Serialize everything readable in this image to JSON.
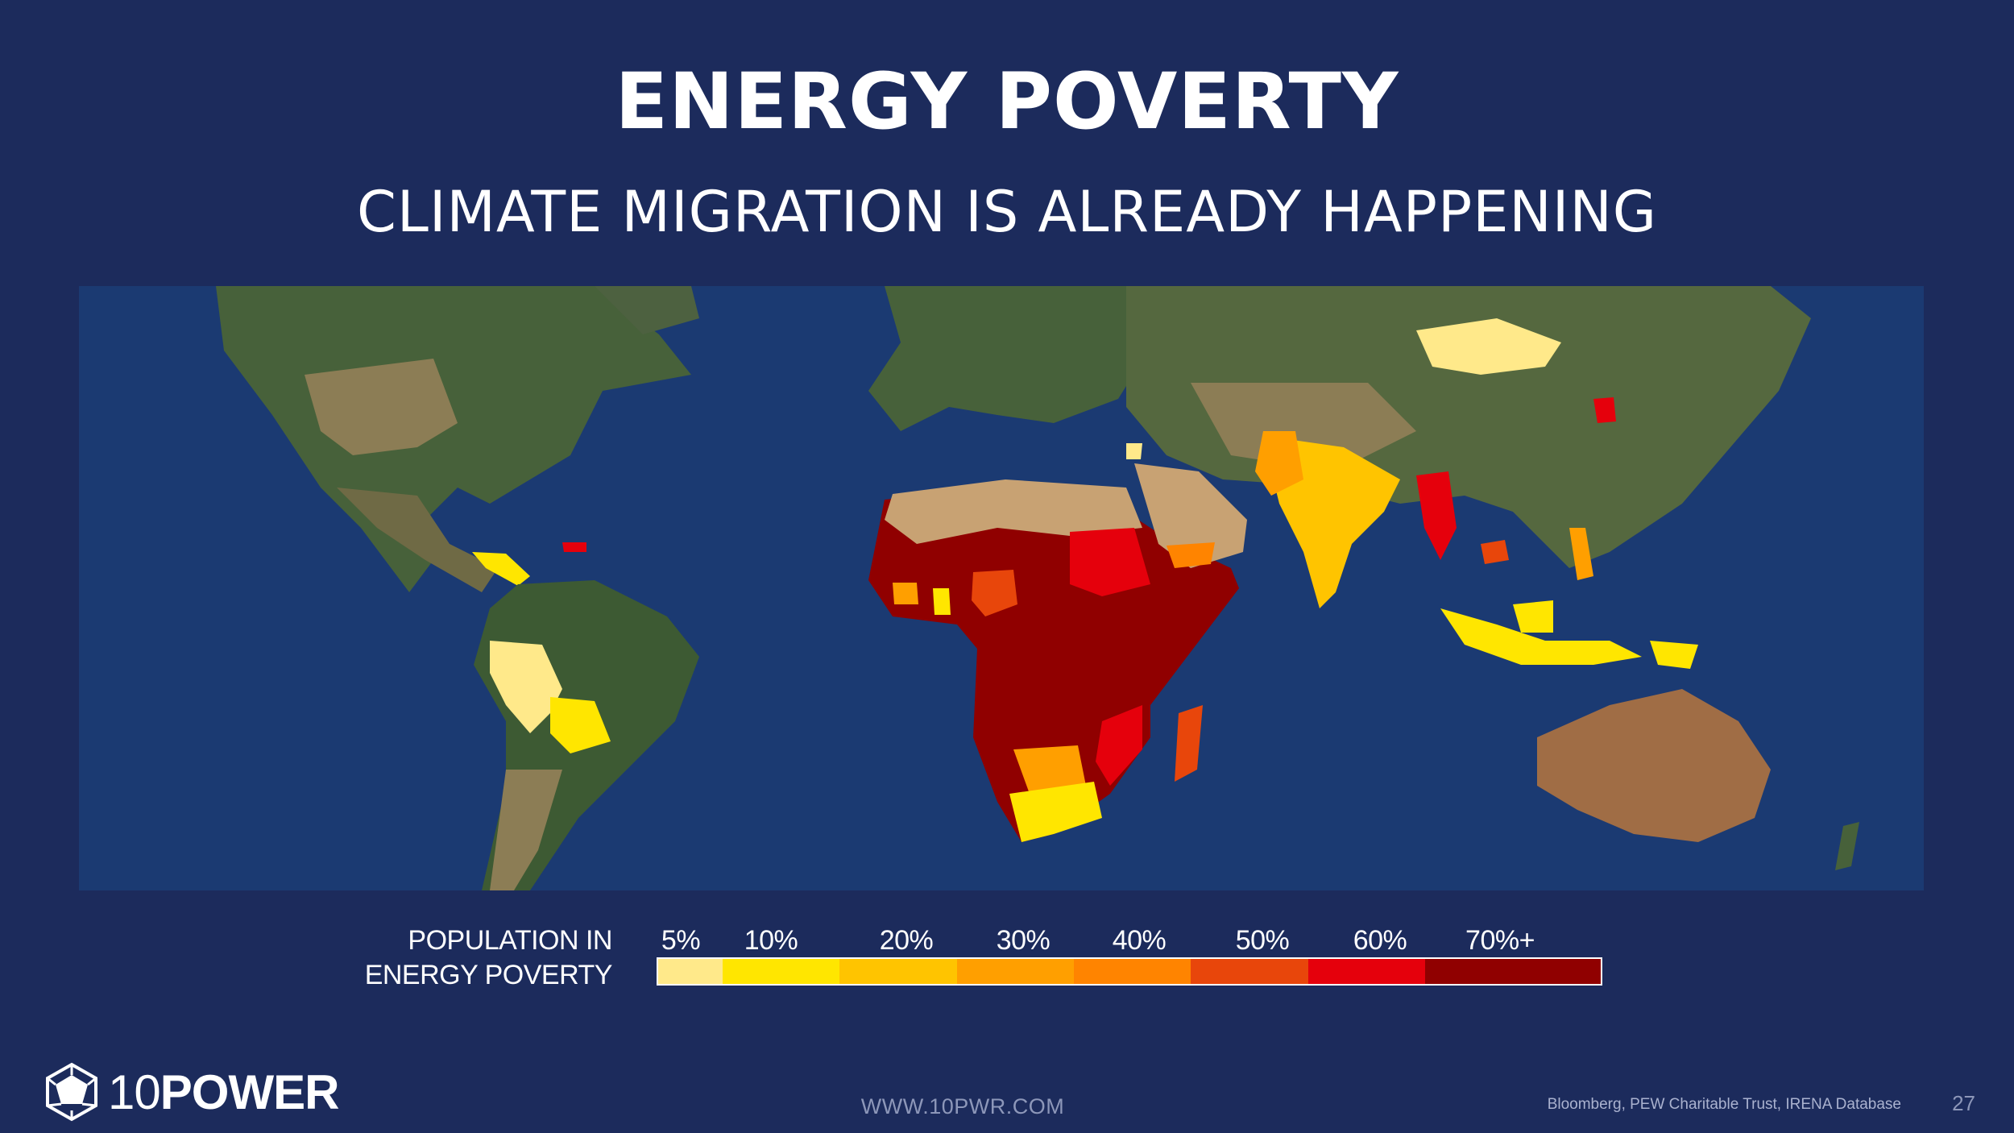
{
  "slide": {
    "title": "ENERGY POVERTY",
    "subtitle": "CLIMATE MIGRATION IS ALREADY HAPPENING"
  },
  "legend": {
    "title_line1": "POPULATION IN",
    "title_line2": "ENERGY POVERTY",
    "labels": [
      "5%",
      "10%",
      "20%",
      "30%",
      "40%",
      "50%",
      "60%",
      "70%+"
    ],
    "colors": [
      "#ffe98a",
      "#ffe600",
      "#ffc400",
      "#ff9f00",
      "#ff8400",
      "#e8460b",
      "#e5000c",
      "#900000"
    ]
  },
  "footer": {
    "logo_number": "10",
    "logo_word": "POWER",
    "website": "WWW.10PWR.COM",
    "source": "Bloomberg, PEW Charitable Trust, IRENA Database",
    "page": "27"
  },
  "colors": {
    "background": "#1c2b5c",
    "ocean": "#1b3a72",
    "land": "#47613a",
    "desert": "#a58b61"
  },
  "map_data": {
    "projection": "equirectangular world satellite basemap",
    "shaded_regions": [
      {
        "region": "Sub-Saharan Africa (most countries)",
        "band": "70%+"
      },
      {
        "region": "Sudan",
        "band": "60%"
      },
      {
        "region": "South Sudan / Central Africa",
        "band": "70%+"
      },
      {
        "region": "Nigeria",
        "band": "50%"
      },
      {
        "region": "Mozambique / Malawi",
        "band": "60%"
      },
      {
        "region": "Madagascar",
        "band": "50%"
      },
      {
        "region": "Namibia / Botswana",
        "band": "30%"
      },
      {
        "region": "South Africa",
        "band": "10%"
      },
      {
        "region": "Ghana",
        "band": "10%"
      },
      {
        "region": "Yemen",
        "band": "40%"
      },
      {
        "region": "India",
        "band": "20%"
      },
      {
        "region": "Myanmar",
        "band": "60%"
      },
      {
        "region": "Cambodia",
        "band": "60%"
      },
      {
        "region": "Indonesia",
        "band": "10%"
      },
      {
        "region": "Philippines",
        "band": "20%"
      },
      {
        "region": "Papua New Guinea",
        "band": "10%"
      },
      {
        "region": "North Korea",
        "band": "60%"
      },
      {
        "region": "Mongolia",
        "band": "5%"
      },
      {
        "region": "Peru",
        "band": "5%"
      },
      {
        "region": "Bolivia",
        "band": "10%"
      },
      {
        "region": "Central America",
        "band": "10%"
      },
      {
        "region": "Haiti",
        "band": "60%"
      },
      {
        "region": "Sahara / Arabia",
        "band": "5%"
      }
    ]
  }
}
